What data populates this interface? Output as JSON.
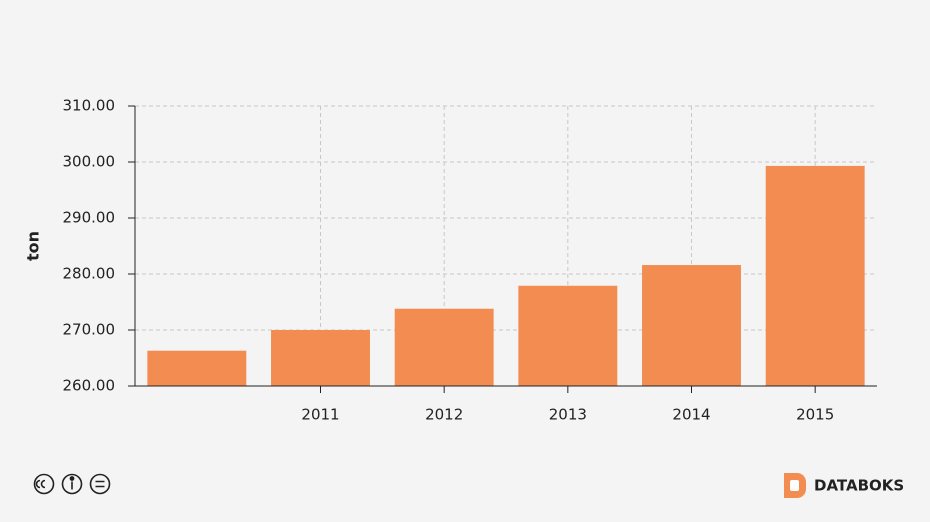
{
  "chart_data": {
    "type": "bar",
    "y_label": "ton",
    "categories": [
      null,
      "2011",
      "2012",
      "2013",
      "2014",
      "2015"
    ],
    "values": [
      266.3,
      270.0,
      273.8,
      277.9,
      281.6,
      299.3
    ],
    "color": "#f28c51",
    "ylim": [
      260,
      310
    ],
    "yticks": [
      {
        "value": 260,
        "label": "260.00"
      },
      {
        "value": 270,
        "label": "270.00"
      },
      {
        "value": 280,
        "label": "280.00"
      },
      {
        "value": 290,
        "label": "290.00"
      },
      {
        "value": 300,
        "label": "300.00"
      },
      {
        "value": 310,
        "label": "310.00"
      }
    ],
    "grid": true
  },
  "footer": {
    "brand": "DATABOKS"
  }
}
